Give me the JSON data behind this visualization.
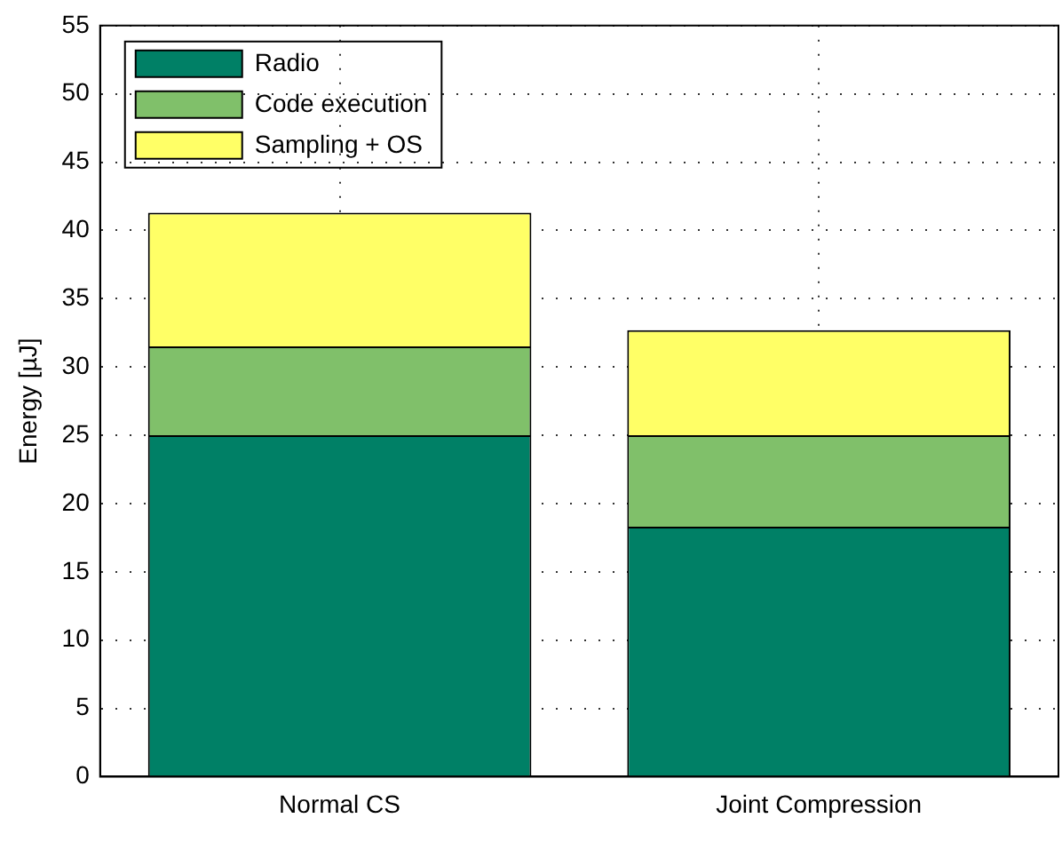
{
  "chart_data": {
    "type": "bar",
    "stacked": true,
    "ylabel": "Energy [µJ]",
    "categories": [
      "Normal CS",
      "Joint Compression"
    ],
    "series": [
      {
        "name": "Radio",
        "color": "#008066",
        "values": [
          25,
          18.3
        ]
      },
      {
        "name": "Code execution",
        "color": "#80c06a",
        "values": [
          6.5,
          6.7
        ]
      },
      {
        "name": "Sampling + OS",
        "color": "#ffff66",
        "values": [
          9.8,
          7.7
        ]
      }
    ],
    "ylim": [
      0,
      55
    ],
    "yticks": [
      0,
      5,
      10,
      15,
      20,
      25,
      30,
      35,
      40,
      45,
      50,
      55
    ],
    "grid": true,
    "legend": "top left"
  }
}
